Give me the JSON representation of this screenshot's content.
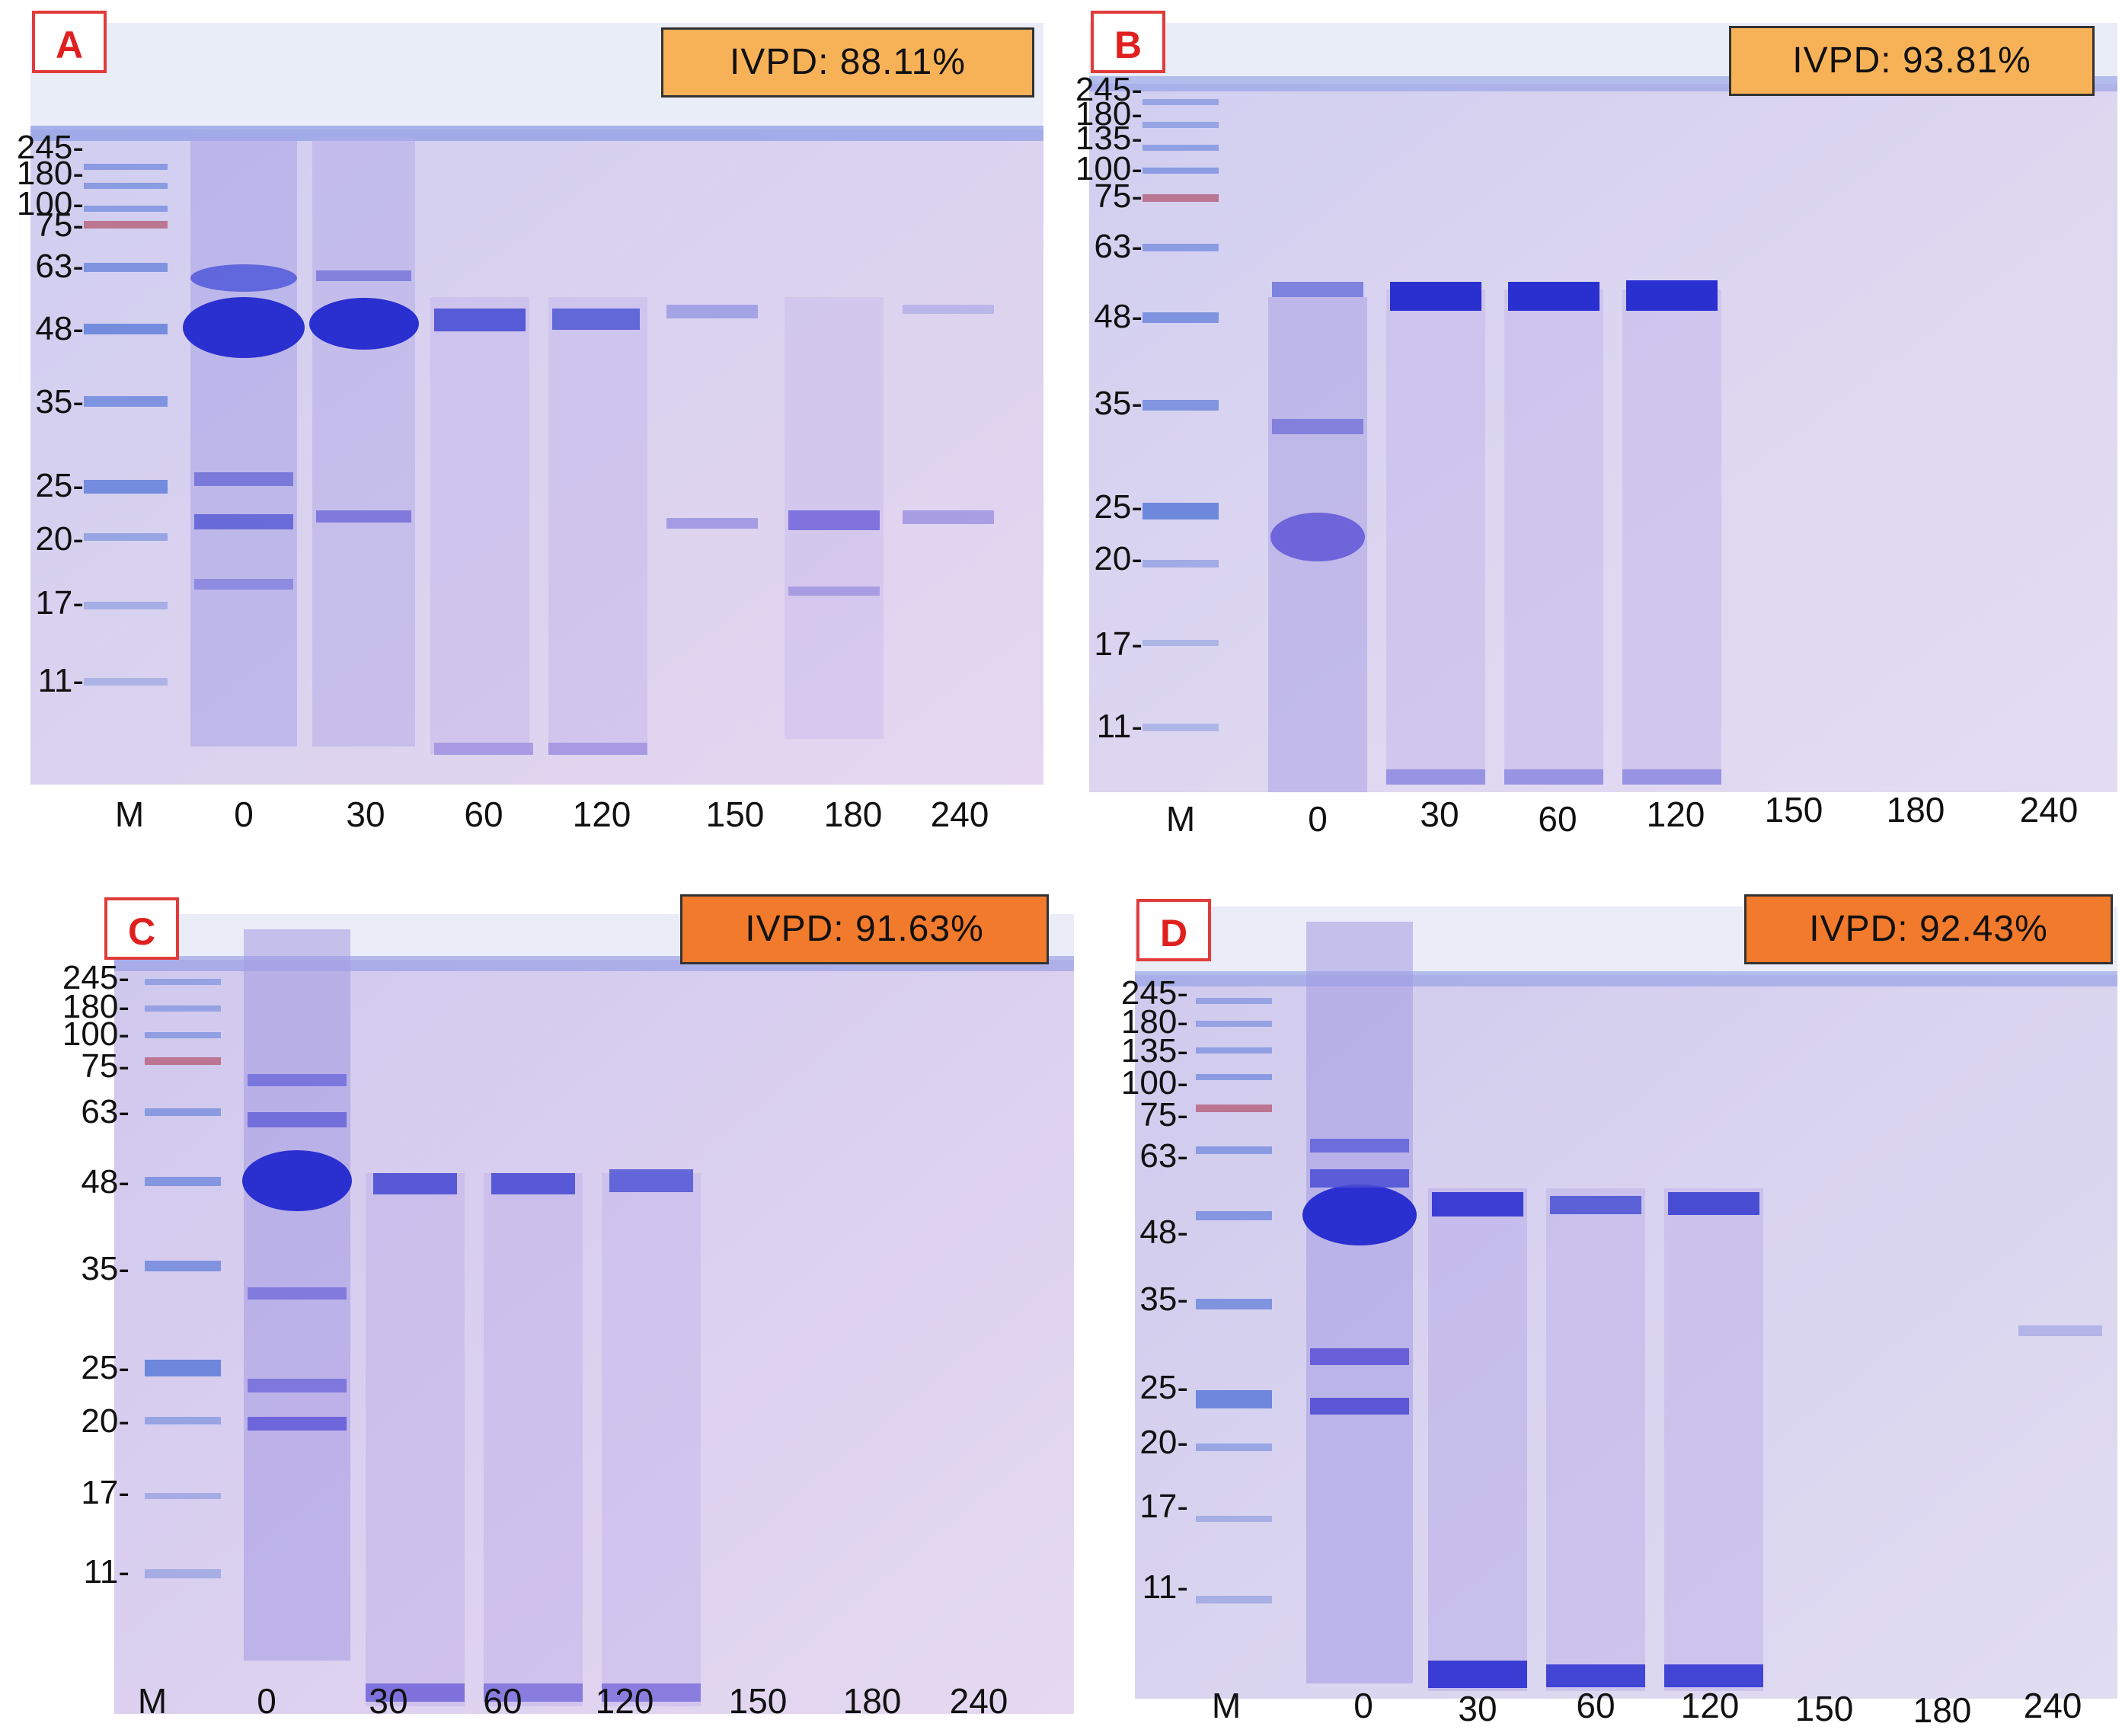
{
  "panels": [
    {
      "letter": "A",
      "ivpd": "IVPD: 88.11%",
      "ivpd_color": "#f7b258",
      "mw_markers": [
        "245-",
        "180-",
        "100-",
        "75-",
        "63-",
        "48-",
        "35-",
        "25-",
        "20-",
        "17-",
        "11-"
      ],
      "lanes": [
        "M",
        "0",
        "30",
        "60",
        "120",
        "150",
        "180",
        "240"
      ]
    },
    {
      "letter": "B",
      "ivpd": "IVPD: 93.81%",
      "ivpd_color": "#f7b258",
      "mw_markers": [
        "245-",
        "180-",
        "135-",
        "100-",
        "75-",
        "63-",
        "48-",
        "35-",
        "25-",
        "20-",
        "17-",
        "11-"
      ],
      "lanes": [
        "M",
        "0",
        "30",
        "60",
        "120",
        "150",
        "180",
        "240"
      ]
    },
    {
      "letter": "C",
      "ivpd": "IVPD: 91.63%",
      "ivpd_color": "#f27a2c",
      "mw_markers": [
        "245-",
        "180-",
        "100-",
        "75-",
        "63-",
        "48-",
        "35-",
        "25-",
        "20-",
        "17-",
        "11-"
      ],
      "lanes": [
        "M",
        "0",
        "30",
        "60",
        "120",
        "150",
        "180",
        "240"
      ]
    },
    {
      "letter": "D",
      "ivpd": "IVPD: 92.43%",
      "ivpd_color": "#f27a2c",
      "mw_markers": [
        "245-",
        "180-",
        "135-",
        "100-",
        "75-",
        "63-",
        "48-",
        "35-",
        "25-",
        "20-",
        "17-",
        "11-"
      ],
      "lanes": [
        "M",
        "0",
        "30",
        "60",
        "120",
        "150",
        "180",
        "240"
      ]
    }
  ],
  "colors": {
    "gel_background": "#d9d4ee",
    "band": "#2a2fd0",
    "marker_band": "#5a7ad8",
    "marker_red": "#b0506a"
  }
}
